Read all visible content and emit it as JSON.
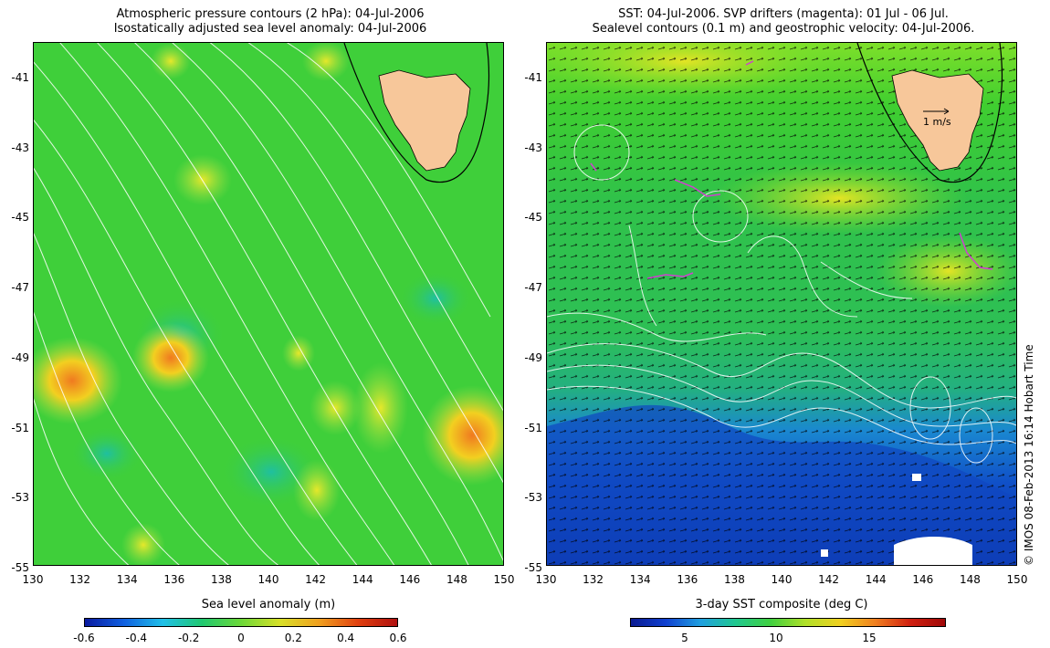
{
  "left_panel": {
    "title_line1": "Atmospheric pressure contours (2 hPa): 04-Jul-2006",
    "title_line2": "Isostatically adjusted sea level anomaly: 04-Jul-2006",
    "x_ticks": [
      "130",
      "132",
      "134",
      "136",
      "138",
      "140",
      "142",
      "144",
      "146",
      "148",
      "150"
    ],
    "y_ticks": [
      "-41",
      "-43",
      "-45",
      "-47",
      "-49",
      "-51",
      "-53",
      "-55"
    ],
    "colorbar_title": "Sea level anomaly (m)",
    "colorbar_ticks": [
      "-0.6",
      "-0.4",
      "-0.2",
      "0",
      "0.2",
      "0.4",
      "0.6"
    ]
  },
  "right_panel": {
    "title_line1": "SST: 04-Jul-2006. SVP drifters (magenta): 01 Jul - 06 Jul.",
    "title_line2": "Sealevel contours (0.1 m) and geostrophic velocity: 04-Jul-2006.",
    "x_ticks": [
      "130",
      "132",
      "134",
      "136",
      "138",
      "140",
      "142",
      "144",
      "146",
      "148",
      "150"
    ],
    "y_ticks": [
      "-41",
      "-43",
      "-45",
      "-47",
      "-49",
      "-51",
      "-53",
      "-55"
    ],
    "scale_label": "1 m/s",
    "colorbar_title": "3-day SST composite (deg C)",
    "colorbar_ticks": [
      "5",
      "10",
      "15"
    ]
  },
  "credit": "© IMOS 08-Feb-2013 16:14 Hobart Time",
  "colors": {
    "land": "#f7c79a",
    "sla_bg": "#3fcf3a",
    "sst_bg": "#2fc24a",
    "contour": "#ffffff",
    "drifter": "#d040d0"
  }
}
